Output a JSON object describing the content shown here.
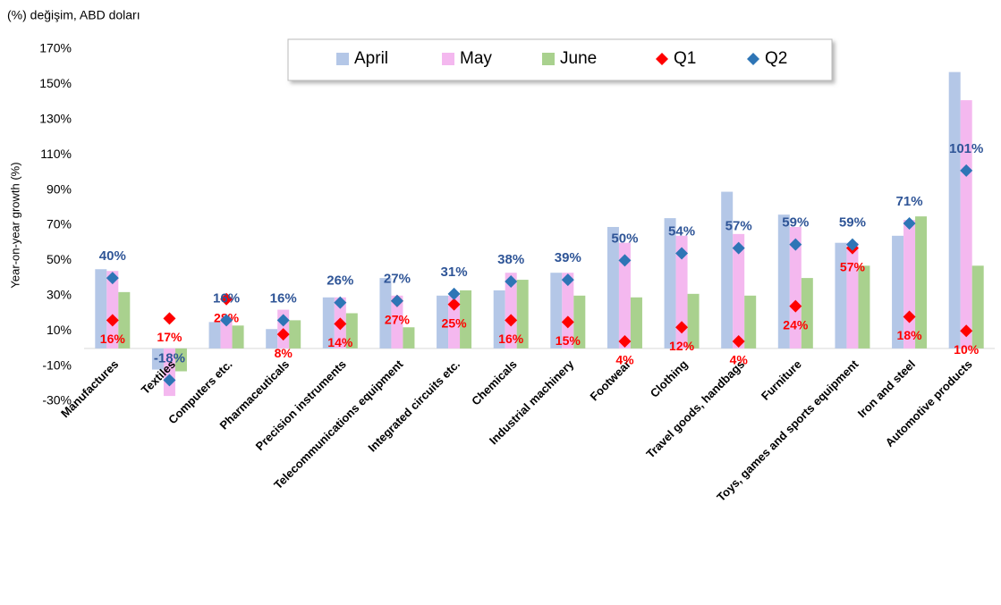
{
  "chart_data": {
    "type": "bar",
    "subtitle": "(%) değişim, ABD doları",
    "y_label": "Year-on-year growth (%)",
    "categories": [
      "Manufactures",
      "Textiles",
      "Computers etc.",
      "Pharmaceuticals",
      "Precision instruments",
      "Telecommunications equipment",
      "Integrated circuits etc.",
      "Chemicals",
      "Industrial machinery",
      "Footwear",
      "Clothing",
      "Travel goods, handbags",
      "Furniture",
      "Toys, games and sports equipment",
      "Iron and steel",
      "Automotive products"
    ],
    "series": [
      {
        "name": "April",
        "color": "#b4c7e7",
        "mark": "bar",
        "values": [
          45,
          -12,
          15,
          11,
          29,
          40,
          30,
          33,
          43,
          69,
          74,
          89,
          76,
          60,
          64,
          157
        ]
      },
      {
        "name": "May",
        "color": "#f4b8ef",
        "mark": "bar",
        "values": [
          44,
          -27,
          18,
          22,
          29,
          30,
          30,
          43,
          43,
          60,
          64,
          65,
          69,
          60,
          73,
          141
        ]
      },
      {
        "name": "June",
        "color": "#a9d18e",
        "mark": "bar",
        "values": [
          32,
          -13,
          13,
          16,
          20,
          12,
          33,
          39,
          30,
          29,
          31,
          30,
          40,
          47,
          75,
          47
        ]
      },
      {
        "name": "Q1",
        "color": "#ff0000",
        "mark": "diamond",
        "values": [
          16,
          17,
          28,
          8,
          14,
          27,
          25,
          16,
          15,
          4,
          12,
          4,
          24,
          57,
          18,
          10
        ],
        "value_labels": [
          "16%",
          "17%",
          "28%",
          "8%",
          "14%",
          "27%",
          "25%",
          "16%",
          "15%",
          "4%",
          "12%",
          "4%",
          "24%",
          "57%",
          "18%",
          "10%"
        ]
      },
      {
        "name": "Q2",
        "color": "#2e75b6",
        "mark": "diamond",
        "values": [
          40,
          -18,
          16,
          16,
          26,
          27,
          31,
          38,
          39,
          50,
          54,
          57,
          59,
          59,
          71,
          101
        ],
        "value_labels": [
          "40%",
          "-18%",
          "16%",
          "16%",
          "26%",
          "27%",
          "31%",
          "38%",
          "39%",
          "50%",
          "54%",
          "57%",
          "59%",
          "59%",
          "71%",
          "101%"
        ]
      }
    ],
    "ylim": [
      -30,
      170
    ],
    "yticks": [
      {
        "value": -30,
        "label": "-30%"
      },
      {
        "value": -10,
        "label": "-10%"
      },
      {
        "value": 10,
        "label": "10%"
      },
      {
        "value": 30,
        "label": "30%"
      },
      {
        "value": 50,
        "label": "50%"
      },
      {
        "value": 70,
        "label": "70%"
      },
      {
        "value": 90,
        "label": "90%"
      },
      {
        "value": 110,
        "label": "110%"
      },
      {
        "value": 130,
        "label": "130%"
      },
      {
        "value": 150,
        "label": "150%"
      },
      {
        "value": 170,
        "label": "170%"
      }
    ],
    "grid": false,
    "legend": "top"
  }
}
